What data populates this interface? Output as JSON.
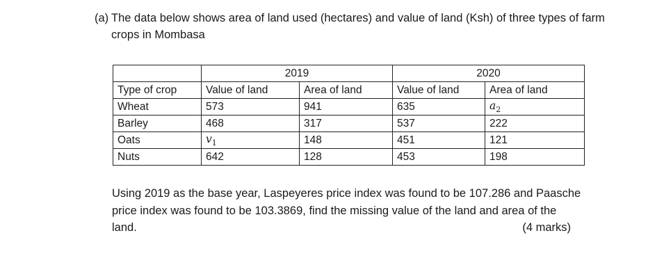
{
  "question": {
    "label": "(a)",
    "intro": "The data below shows area of land used (hectares) and value of land (Ksh) of three types of farm crops in Mombasa",
    "paragraph": "Using 2019 as the base year, Laspeyeres price index was found to be 107.286 and Paasche price index was found to be 103.3869, find the missing value of the land and area of the",
    "paragraph_end": "land.",
    "marks": "(4 marks)"
  },
  "table": {
    "years": [
      "2019",
      "2020"
    ],
    "headers": [
      "Type of crop",
      "Value of land",
      "Area of land",
      "Value of land",
      "Area of land"
    ],
    "rows": [
      [
        "Wheat",
        "573",
        "941",
        "635",
        "a2"
      ],
      [
        "Barley",
        "468",
        "317",
        "537",
        "222"
      ],
      [
        "Oats",
        "v1",
        "148",
        "451",
        "121"
      ],
      [
        "Nuts",
        "642",
        "128",
        "453",
        "198"
      ]
    ],
    "variables": {
      "v1": {
        "base": "v",
        "sub": "1"
      },
      "a2": {
        "base": "a",
        "sub": "2"
      }
    }
  }
}
